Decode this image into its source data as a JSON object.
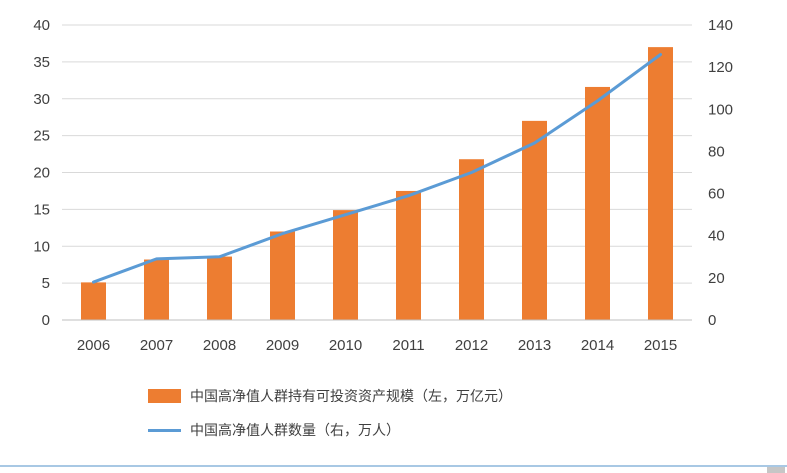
{
  "chart_data": {
    "type": "combo-bar-line",
    "categories": [
      "2006",
      "2007",
      "2008",
      "2009",
      "2010",
      "2011",
      "2012",
      "2013",
      "2014",
      "2015"
    ],
    "series": [
      {
        "name": "中国高净值人群持有可投资资产规模（左，万亿元）",
        "type": "bar",
        "axis": "left",
        "color": "#ED7D31",
        "values": [
          5.1,
          8.2,
          8.6,
          12.0,
          14.9,
          17.5,
          21.8,
          27.0,
          31.6,
          37.0
        ]
      },
      {
        "name": "中国高净值人群数量（右，万人）",
        "type": "line",
        "axis": "right",
        "color": "#5B9BD5",
        "values": [
          18,
          29,
          30,
          41,
          50,
          59,
          70,
          84,
          104,
          126
        ]
      }
    ],
    "left_axis": {
      "min": 0,
      "max": 40,
      "step": 5,
      "ticks": [
        0,
        5,
        10,
        15,
        20,
        25,
        30,
        35,
        40
      ]
    },
    "right_axis": {
      "min": 0,
      "max": 140,
      "step": 20,
      "ticks": [
        0,
        20,
        40,
        60,
        80,
        100,
        120,
        140
      ]
    },
    "grid": true,
    "legend_position": "bottom-left",
    "colors": {
      "gridline": "#D9D9D9",
      "axis_line": "#BFBFBF",
      "tick_text": "#404040"
    }
  },
  "legend": {
    "items": [
      {
        "label": "中国高净值人群持有可投资资产规模（左，万亿元）",
        "marker": "bar",
        "color": "#ED7D31"
      },
      {
        "label": "中国高净值人群数量（右，万人）",
        "marker": "line",
        "color": "#5B9BD5"
      }
    ]
  }
}
